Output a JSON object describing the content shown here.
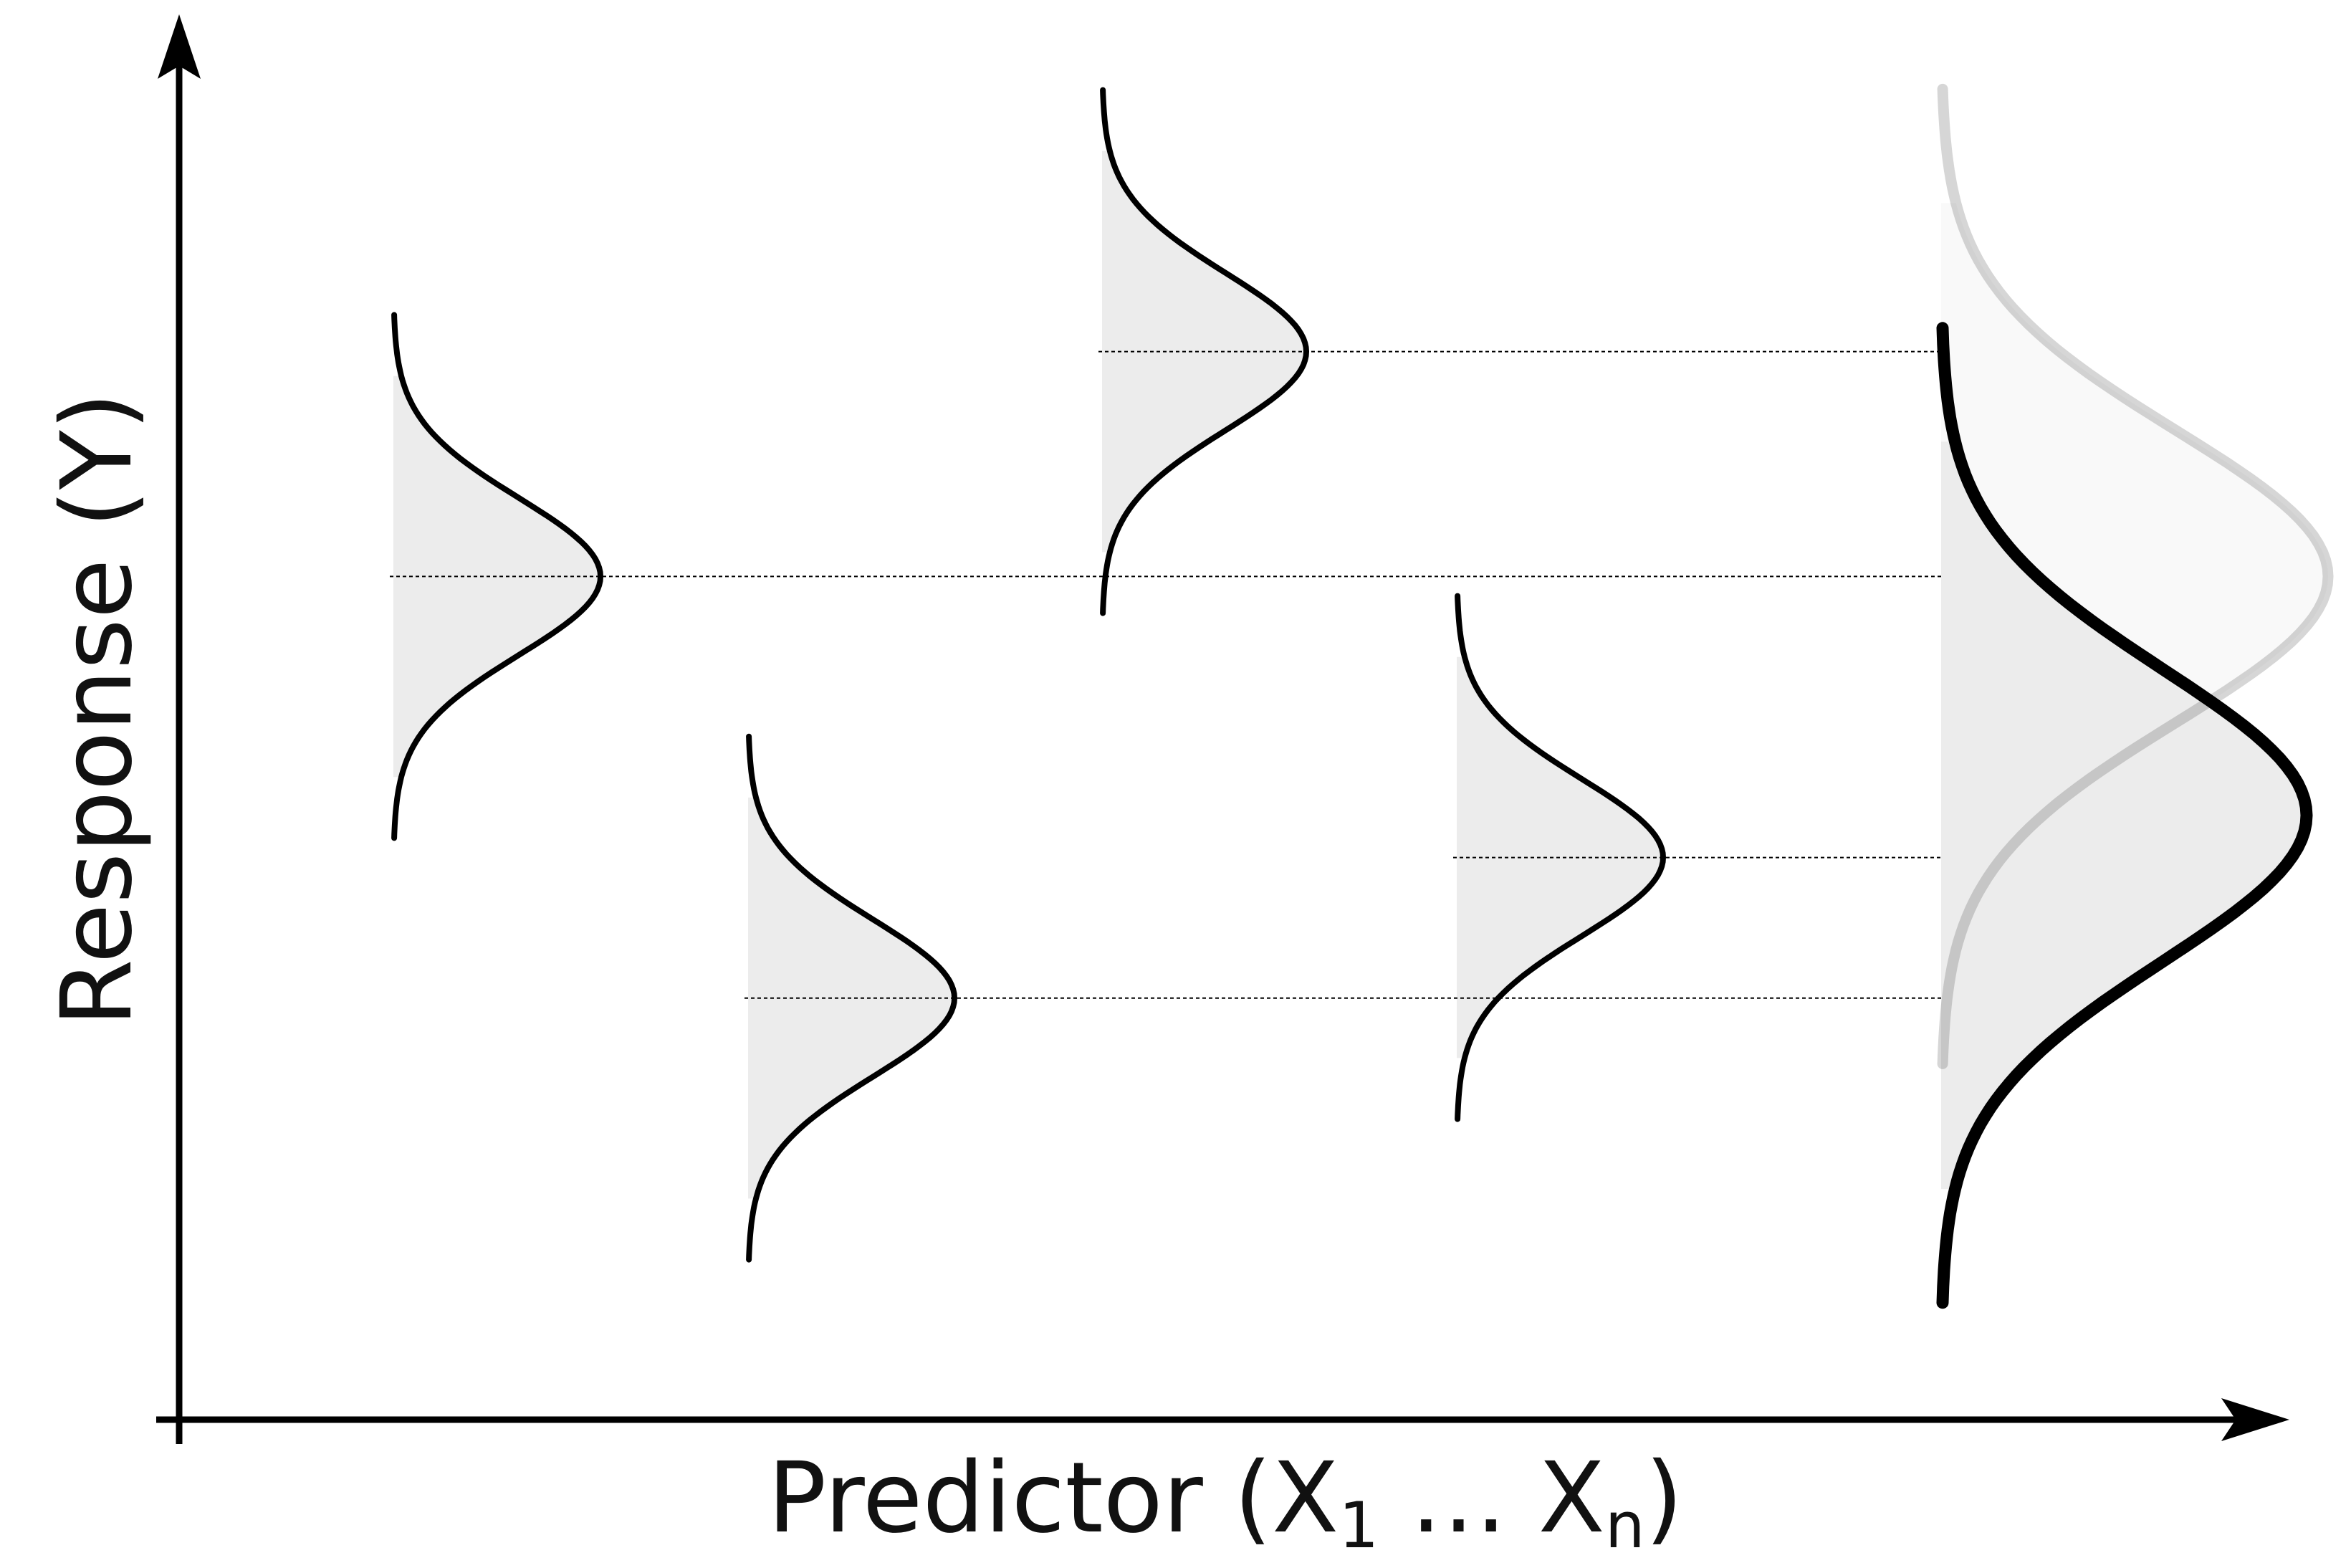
{
  "axes": {
    "x_label": "Predictor (X",
    "x_sub_start": "1",
    "x_ellipsis": " … X",
    "x_sub_end": "n",
    "x_close": ")",
    "y_label": "Response (Y)"
  },
  "colors": {
    "stroke": "#000000",
    "fill": "#ececec",
    "guide": "#000000"
  },
  "distributions": [
    {
      "name": "distribution-1",
      "mean": 0.6
    },
    {
      "name": "distribution-2",
      "mean": 0.3
    },
    {
      "name": "distribution-3",
      "mean": 0.76
    },
    {
      "name": "distribution-4",
      "mean": 0.4
    }
  ],
  "combined": {
    "name": "combined-distribution",
    "mean": 0.43
  },
  "ghost": {
    "name": "reference-distribution",
    "mean": 0.6
  }
}
